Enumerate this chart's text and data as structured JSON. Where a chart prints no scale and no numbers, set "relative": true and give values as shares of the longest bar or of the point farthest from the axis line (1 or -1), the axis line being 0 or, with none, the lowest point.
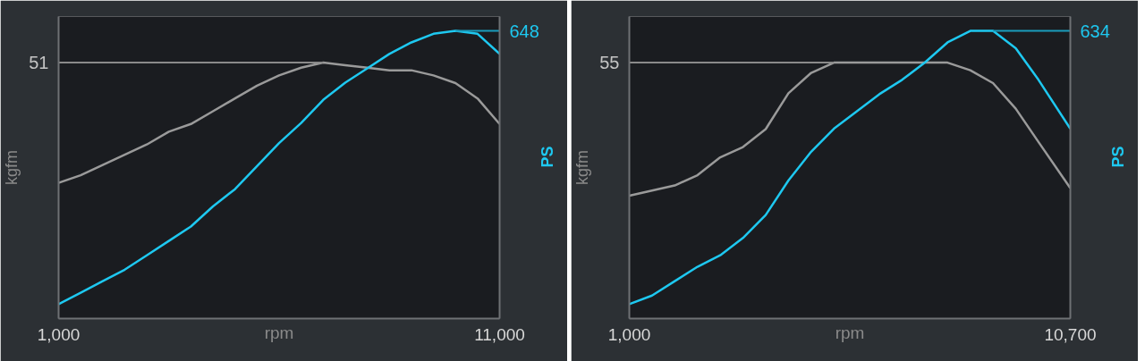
{
  "chart_data": [
    {
      "type": "line",
      "relative": true,
      "xlabel": "rpm",
      "ylabel": "kgfm",
      "y2label": "PS",
      "x": [
        1000,
        1500,
        2000,
        2500,
        3000,
        3500,
        4000,
        4500,
        5000,
        5500,
        6000,
        6500,
        7000,
        7500,
        8000,
        8500,
        9000,
        9500,
        10000,
        10500,
        11000
      ],
      "xlim": [
        1000,
        11000
      ],
      "xticks": [
        {
          "value": 1000,
          "label": "1,000"
        },
        {
          "value": 11000,
          "label": "11,000"
        }
      ],
      "series": [
        {
          "color": "#9a9a9a",
          "values": [
            0.53,
            0.56,
            0.6,
            0.64,
            0.68,
            0.73,
            0.76,
            0.81,
            0.86,
            0.91,
            0.95,
            0.98,
            1,
            0.99,
            0.98,
            0.97,
            0.97,
            0.95,
            0.92,
            0.86,
            0.76
          ]
        },
        {
          "color": "#1ec8f0",
          "axis": "y2",
          "values": [
            0.05,
            0.09,
            0.13,
            0.17,
            0.22,
            0.27,
            0.32,
            0.39,
            0.45,
            0.53,
            0.61,
            0.68,
            0.76,
            0.82,
            0.87,
            0.92,
            0.96,
            0.99,
            1,
            0.99,
            0.92
          ]
        }
      ],
      "ref_lines": [
        {
          "axis": "y",
          "value": 1,
          "color": "#8a8a8a"
        },
        {
          "axis": "y2",
          "value": 1,
          "color": "#1a9cbc"
        }
      ],
      "annotations": [
        "51",
        "648"
      ]
    },
    {
      "type": "line",
      "relative": true,
      "xlabel": "rpm",
      "ylabel": "kgfm",
      "y2label": "PS",
      "x": [
        1000,
        1500,
        2000,
        2500,
        3000,
        3500,
        4000,
        4500,
        5000,
        5500,
        6000,
        6500,
        7000,
        7500,
        8000,
        8500,
        9000,
        9500,
        10000,
        10700
      ],
      "xlim": [
        1000,
        10700
      ],
      "xticks": [
        {
          "value": 1000,
          "label": "1,000"
        },
        {
          "value": 10700,
          "label": "10,700"
        }
      ],
      "series": [
        {
          "color": "#9a9a9a",
          "values": [
            0.48,
            0.5,
            0.52,
            0.56,
            0.63,
            0.67,
            0.74,
            0.88,
            0.96,
            1,
            1,
            1,
            1,
            1,
            1,
            0.97,
            0.92,
            0.82,
            0.69,
            0.51
          ]
        },
        {
          "color": "#1ec8f0",
          "axis": "y2",
          "values": [
            0.05,
            0.08,
            0.13,
            0.18,
            0.22,
            0.28,
            0.36,
            0.48,
            0.58,
            0.66,
            0.72,
            0.78,
            0.83,
            0.89,
            0.96,
            1,
            1,
            0.94,
            0.83,
            0.66
          ]
        }
      ],
      "ref_lines": [
        {
          "axis": "y",
          "value": 1,
          "color": "#8a8a8a"
        },
        {
          "axis": "y2",
          "value": 1,
          "color": "#1a9cbc"
        }
      ],
      "annotations": [
        "55",
        "634"
      ]
    }
  ]
}
